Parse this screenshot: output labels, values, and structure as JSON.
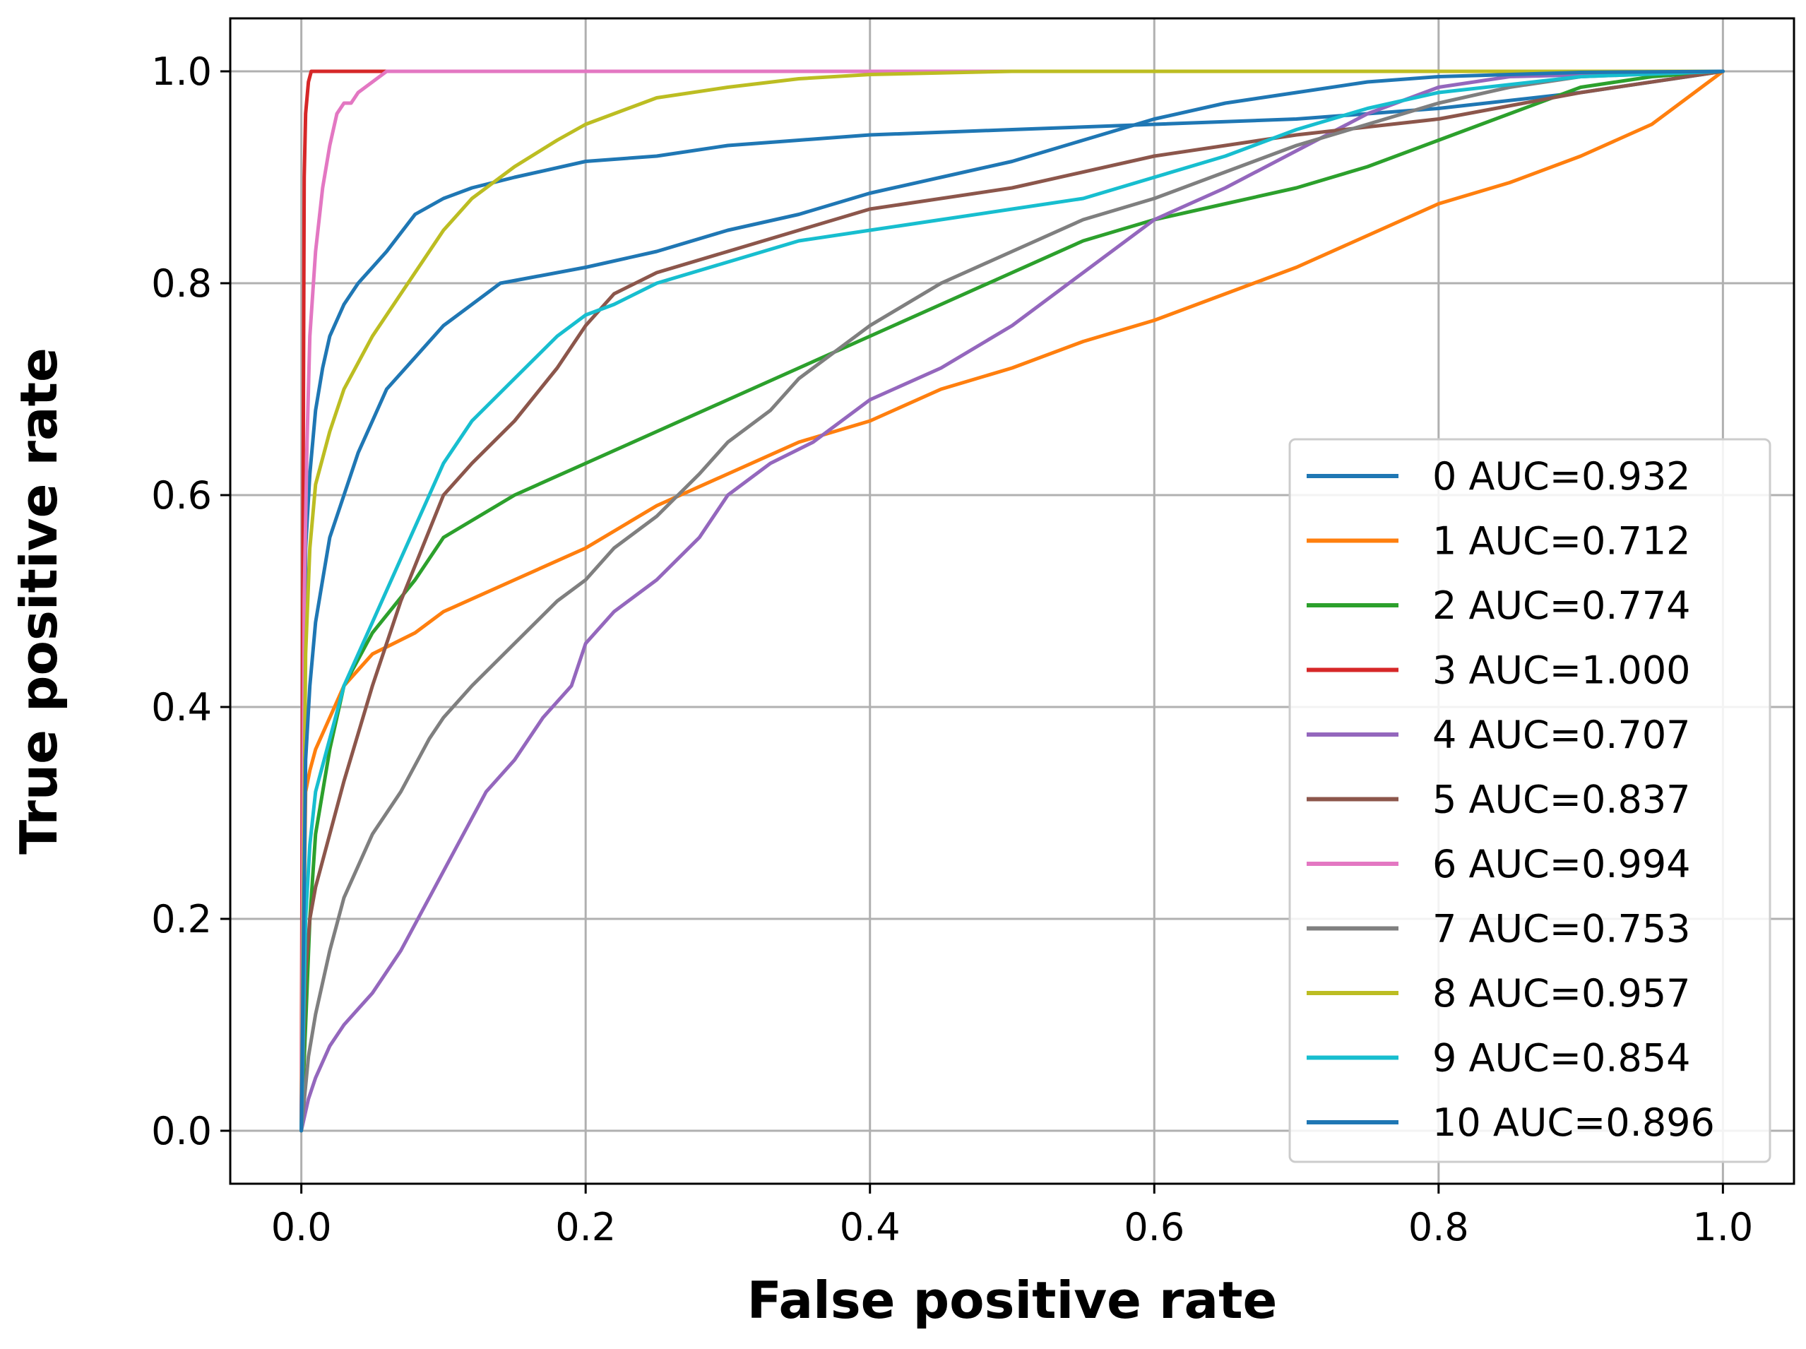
{
  "chart_data": {
    "type": "line",
    "title": "",
    "xlabel": "False positive rate",
    "ylabel": "True positive rate",
    "xlim": [
      -0.05,
      1.05
    ],
    "ylim": [
      -0.05,
      1.05
    ],
    "grid": true,
    "legend_position": "lower-right",
    "xticks": [
      0.0,
      0.2,
      0.4,
      0.6,
      0.8,
      1.0
    ],
    "yticks": [
      0.0,
      0.2,
      0.4,
      0.6,
      0.8,
      1.0
    ],
    "xtick_labels": [
      "0.0",
      "0.2",
      "0.4",
      "0.6",
      "0.8",
      "1.0"
    ],
    "ytick_labels": [
      "0.0",
      "0.2",
      "0.4",
      "0.6",
      "0.8",
      "1.0"
    ],
    "series": [
      {
        "name": "0 AUC=0.932",
        "color": "#1f77b4",
        "x": [
          0,
          0.003,
          0.006,
          0.01,
          0.015,
          0.02,
          0.03,
          0.04,
          0.05,
          0.06,
          0.08,
          0.1,
          0.12,
          0.15,
          0.2,
          0.25,
          0.3,
          0.35,
          0.4,
          0.5,
          0.6,
          0.7,
          0.8,
          0.9,
          1.0
        ],
        "y": [
          0,
          0.55,
          0.62,
          0.68,
          0.72,
          0.75,
          0.78,
          0.8,
          0.815,
          0.83,
          0.865,
          0.88,
          0.89,
          0.9,
          0.915,
          0.92,
          0.93,
          0.935,
          0.94,
          0.945,
          0.95,
          0.955,
          0.965,
          0.98,
          1.0
        ]
      },
      {
        "name": "1 AUC=0.712",
        "color": "#ff7f0e",
        "x": [
          0,
          0.003,
          0.006,
          0.01,
          0.02,
          0.03,
          0.05,
          0.08,
          0.1,
          0.15,
          0.2,
          0.25,
          0.3,
          0.35,
          0.4,
          0.45,
          0.5,
          0.55,
          0.6,
          0.65,
          0.7,
          0.75,
          0.8,
          0.85,
          0.9,
          0.95,
          1.0
        ],
        "y": [
          0,
          0.32,
          0.34,
          0.36,
          0.39,
          0.42,
          0.45,
          0.47,
          0.49,
          0.52,
          0.55,
          0.59,
          0.62,
          0.65,
          0.67,
          0.7,
          0.72,
          0.745,
          0.765,
          0.79,
          0.815,
          0.845,
          0.875,
          0.895,
          0.92,
          0.95,
          1.0
        ]
      },
      {
        "name": "2 AUC=0.774",
        "color": "#2ca02c",
        "x": [
          0,
          0.003,
          0.006,
          0.01,
          0.02,
          0.03,
          0.05,
          0.08,
          0.1,
          0.15,
          0.2,
          0.25,
          0.3,
          0.35,
          0.4,
          0.45,
          0.5,
          0.55,
          0.6,
          0.65,
          0.7,
          0.75,
          0.8,
          0.85,
          0.9,
          0.95,
          1.0
        ],
        "y": [
          0,
          0.1,
          0.2,
          0.28,
          0.36,
          0.42,
          0.47,
          0.52,
          0.56,
          0.6,
          0.63,
          0.66,
          0.69,
          0.72,
          0.75,
          0.78,
          0.81,
          0.84,
          0.86,
          0.875,
          0.89,
          0.91,
          0.935,
          0.96,
          0.985,
          0.995,
          1.0
        ]
      },
      {
        "name": "3 AUC=1.000",
        "color": "#d62728",
        "x": [
          0,
          0.001,
          0.002,
          0.003,
          0.005,
          0.007,
          0.02,
          0.04,
          0.07,
          0.1,
          1.0
        ],
        "y": [
          0,
          0.5,
          0.9,
          0.96,
          0.99,
          1.0,
          1.0,
          1.0,
          1.0,
          1.0,
          1.0
        ]
      },
      {
        "name": "4 AUC=0.707",
        "color": "#9467bd",
        "x": [
          0,
          0.005,
          0.01,
          0.02,
          0.03,
          0.05,
          0.07,
          0.09,
          0.11,
          0.13,
          0.15,
          0.17,
          0.19,
          0.2,
          0.22,
          0.25,
          0.28,
          0.3,
          0.33,
          0.36,
          0.4,
          0.45,
          0.5,
          0.55,
          0.6,
          0.65,
          0.7,
          0.75,
          0.8,
          0.85,
          1.0
        ],
        "y": [
          0,
          0.03,
          0.05,
          0.08,
          0.1,
          0.13,
          0.17,
          0.22,
          0.27,
          0.32,
          0.35,
          0.39,
          0.42,
          0.46,
          0.49,
          0.52,
          0.56,
          0.6,
          0.63,
          0.65,
          0.69,
          0.72,
          0.76,
          0.81,
          0.86,
          0.89,
          0.925,
          0.96,
          0.985,
          0.995,
          1.0
        ]
      },
      {
        "name": "5 AUC=0.837",
        "color": "#8c564b",
        "x": [
          0,
          0.003,
          0.006,
          0.01,
          0.02,
          0.03,
          0.05,
          0.07,
          0.1,
          0.12,
          0.15,
          0.18,
          0.2,
          0.22,
          0.25,
          0.3,
          0.35,
          0.4,
          0.5,
          0.6,
          0.7,
          0.8,
          0.9,
          1.0
        ],
        "y": [
          0,
          0.15,
          0.2,
          0.23,
          0.28,
          0.33,
          0.42,
          0.5,
          0.6,
          0.63,
          0.67,
          0.72,
          0.76,
          0.79,
          0.81,
          0.83,
          0.85,
          0.87,
          0.89,
          0.92,
          0.94,
          0.955,
          0.98,
          1.0
        ]
      },
      {
        "name": "6 AUC=0.994",
        "color": "#e377c2",
        "x": [
          0,
          0.002,
          0.004,
          0.006,
          0.01,
          0.015,
          0.02,
          0.025,
          0.03,
          0.035,
          0.04,
          0.05,
          0.06,
          0.08,
          0.1,
          1.0
        ],
        "y": [
          0,
          0.5,
          0.65,
          0.75,
          0.83,
          0.89,
          0.93,
          0.96,
          0.97,
          0.97,
          0.98,
          0.99,
          1.0,
          1.0,
          1.0,
          1.0
        ]
      },
      {
        "name": "7 AUC=0.753",
        "color": "#7f7f7f",
        "x": [
          0,
          0.005,
          0.01,
          0.02,
          0.03,
          0.05,
          0.07,
          0.09,
          0.1,
          0.12,
          0.15,
          0.18,
          0.2,
          0.22,
          0.25,
          0.28,
          0.3,
          0.33,
          0.35,
          0.4,
          0.45,
          0.5,
          0.55,
          0.6,
          0.65,
          0.7,
          0.75,
          0.8,
          0.85,
          0.9,
          1.0
        ],
        "y": [
          0,
          0.07,
          0.11,
          0.17,
          0.22,
          0.28,
          0.32,
          0.37,
          0.39,
          0.42,
          0.46,
          0.5,
          0.52,
          0.55,
          0.58,
          0.62,
          0.65,
          0.68,
          0.71,
          0.76,
          0.8,
          0.83,
          0.86,
          0.88,
          0.905,
          0.93,
          0.95,
          0.97,
          0.985,
          0.995,
          1.0
        ]
      },
      {
        "name": "8 AUC=0.957",
        "color": "#bcbd22",
        "x": [
          0,
          0.003,
          0.006,
          0.01,
          0.02,
          0.03,
          0.05,
          0.07,
          0.09,
          0.1,
          0.12,
          0.15,
          0.18,
          0.2,
          0.22,
          0.25,
          0.3,
          0.35,
          0.4,
          0.5,
          0.6,
          0.8,
          1.0
        ],
        "y": [
          0,
          0.45,
          0.55,
          0.61,
          0.66,
          0.7,
          0.75,
          0.79,
          0.83,
          0.85,
          0.88,
          0.91,
          0.935,
          0.95,
          0.96,
          0.975,
          0.985,
          0.993,
          0.997,
          1.0,
          1.0,
          1.0,
          1.0
        ]
      },
      {
        "name": "9 AUC=0.854",
        "color": "#17becf",
        "x": [
          0,
          0.003,
          0.006,
          0.01,
          0.02,
          0.03,
          0.05,
          0.07,
          0.09,
          0.1,
          0.12,
          0.15,
          0.18,
          0.2,
          0.22,
          0.25,
          0.3,
          0.35,
          0.4,
          0.45,
          0.5,
          0.55,
          0.6,
          0.65,
          0.7,
          0.75,
          0.8,
          0.9,
          1.0
        ],
        "y": [
          0,
          0.2,
          0.27,
          0.32,
          0.37,
          0.42,
          0.48,
          0.54,
          0.6,
          0.63,
          0.67,
          0.71,
          0.75,
          0.77,
          0.78,
          0.8,
          0.82,
          0.84,
          0.85,
          0.86,
          0.87,
          0.88,
          0.9,
          0.92,
          0.945,
          0.965,
          0.98,
          0.995,
          1.0
        ]
      },
      {
        "name": "10 AUC=0.896",
        "color": "#1f77b4",
        "x": [
          0,
          0.003,
          0.006,
          0.01,
          0.015,
          0.02,
          0.03,
          0.04,
          0.05,
          0.06,
          0.08,
          0.1,
          0.12,
          0.14,
          0.16,
          0.2,
          0.25,
          0.3,
          0.35,
          0.4,
          0.45,
          0.5,
          0.55,
          0.6,
          0.65,
          0.7,
          0.75,
          0.8,
          0.85,
          0.9,
          1.0
        ],
        "y": [
          0,
          0.35,
          0.42,
          0.48,
          0.52,
          0.56,
          0.6,
          0.64,
          0.67,
          0.7,
          0.73,
          0.76,
          0.78,
          0.8,
          0.805,
          0.815,
          0.83,
          0.85,
          0.865,
          0.885,
          0.9,
          0.915,
          0.935,
          0.955,
          0.97,
          0.98,
          0.99,
          0.995,
          0.997,
          0.999,
          1.0
        ]
      }
    ]
  }
}
